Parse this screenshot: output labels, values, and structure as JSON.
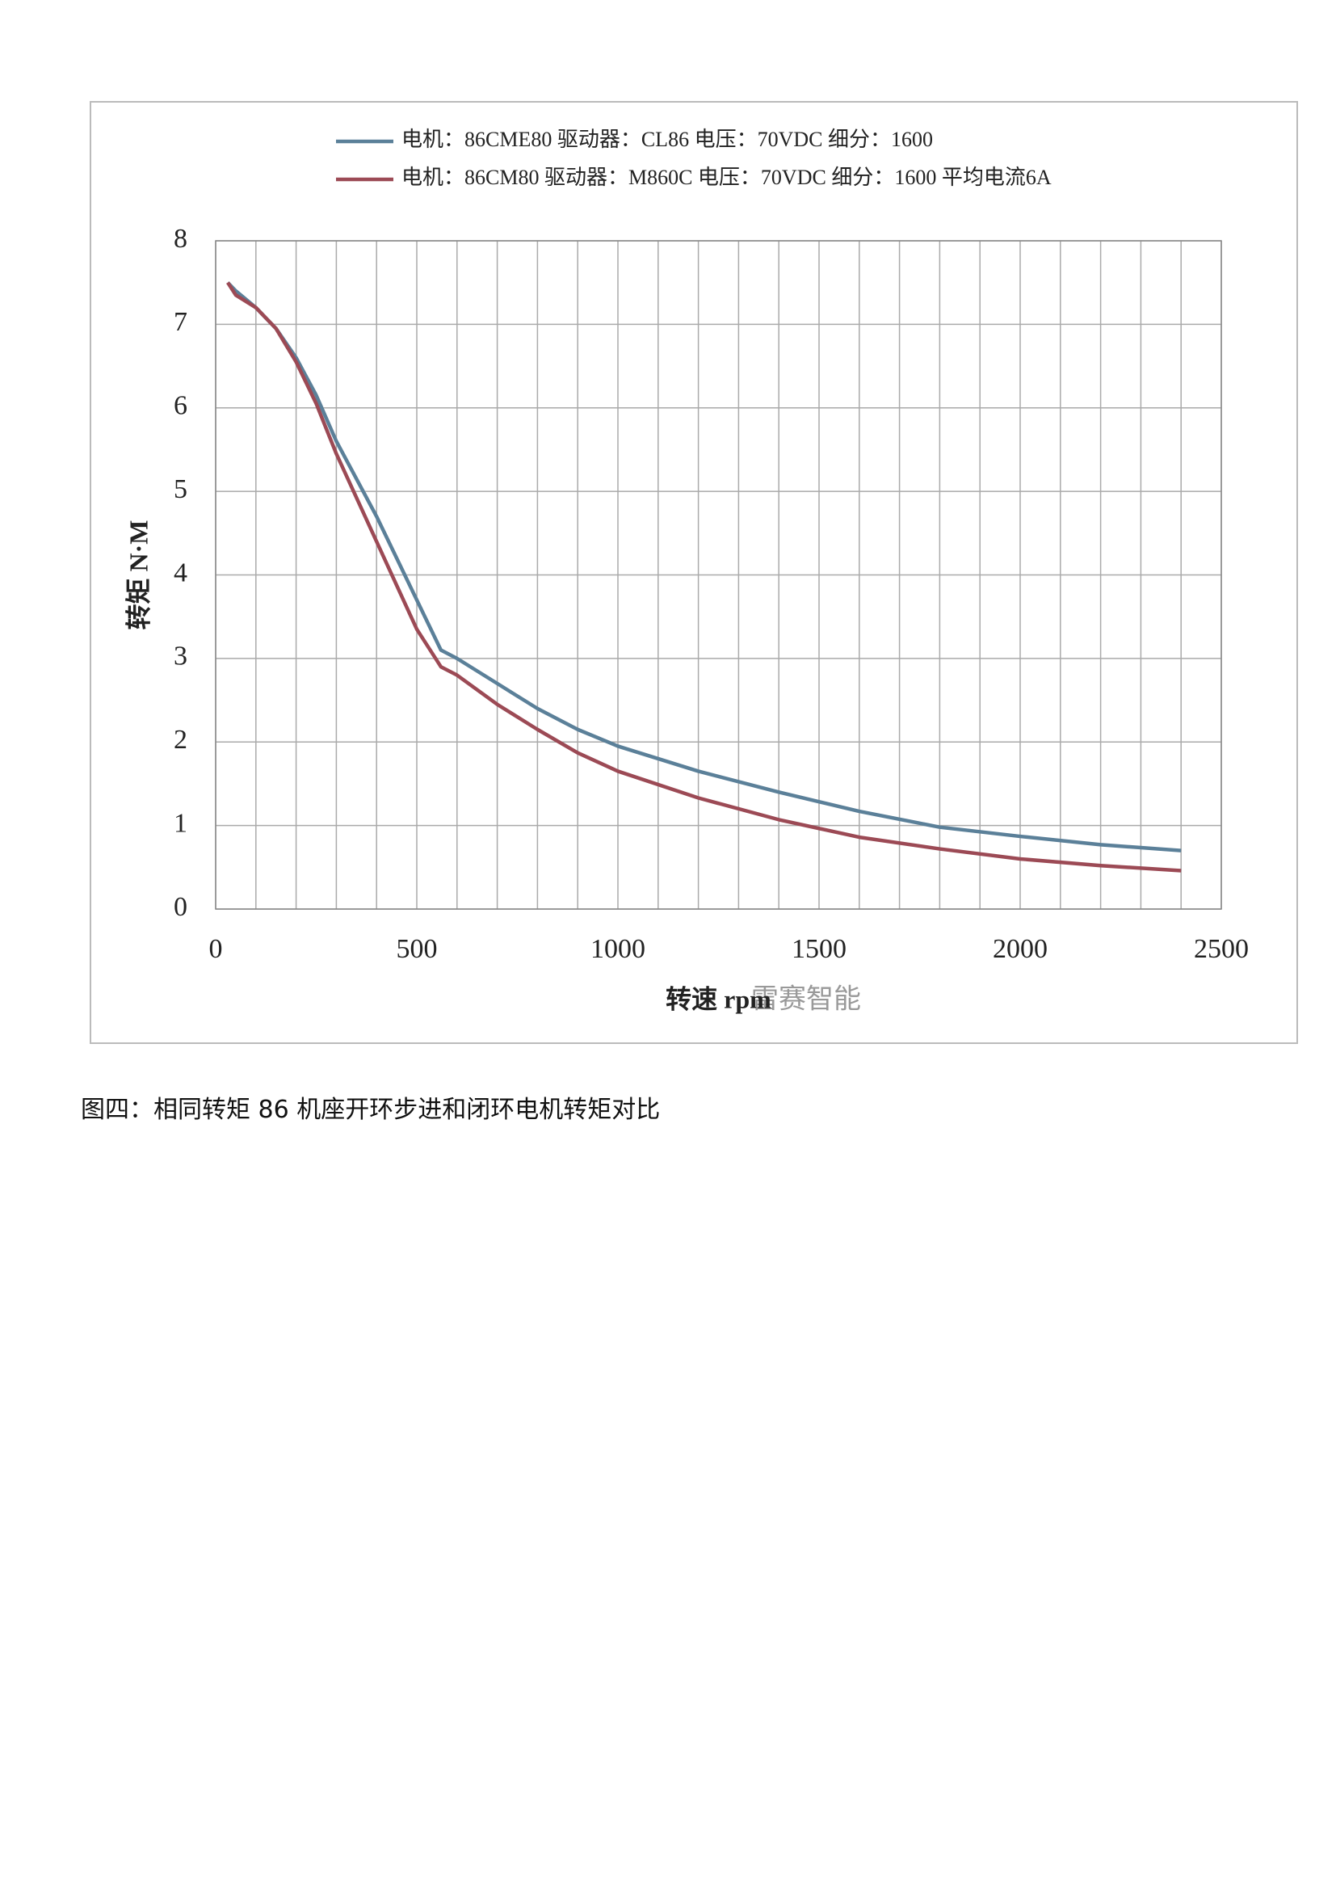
{
  "chart_data": {
    "type": "line",
    "legend": "top",
    "x_label": "转速 rpm",
    "y_label": "转矩 N·M",
    "annotation": "雷赛智能",
    "xlim": [
      0,
      2500
    ],
    "xticks": [
      0,
      500,
      1000,
      1500,
      2000,
      2500
    ],
    "xgrid": [
      0,
      100,
      200,
      300,
      400,
      500,
      600,
      700,
      800,
      900,
      1000,
      1100,
      1200,
      1300,
      1400,
      1500,
      1600,
      1700,
      1800,
      1900,
      2000,
      2100,
      2200,
      2300,
      2400,
      2500
    ],
    "ylim": [
      0,
      8
    ],
    "yticks": [
      0,
      1,
      2,
      3,
      4,
      5,
      6,
      7,
      8
    ],
    "grid": true,
    "x": [
      30,
      50,
      100,
      150,
      200,
      250,
      300,
      400,
      500,
      560,
      600,
      700,
      800,
      900,
      1000,
      1200,
      1400,
      1600,
      1800,
      2000,
      2200,
      2400
    ],
    "series": [
      {
        "name": "电机：86CME80 驱动器：CL86 电压：70VDC 细分：1600",
        "color": "#5b8099",
        "values": [
          7.5,
          7.4,
          7.2,
          6.95,
          6.6,
          6.15,
          5.6,
          4.7,
          3.7,
          3.1,
          3.0,
          2.7,
          2.4,
          2.15,
          1.95,
          1.65,
          1.4,
          1.17,
          0.98,
          0.87,
          0.77,
          0.7
        ]
      },
      {
        "name": "电机：86CM80 驱动器：M860C 电压：70VDC 细分：1600 平均电流6A",
        "color": "#9c4a55",
        "values": [
          7.5,
          7.35,
          7.2,
          6.95,
          6.55,
          6.05,
          5.45,
          4.4,
          3.35,
          2.9,
          2.8,
          2.45,
          2.15,
          1.87,
          1.65,
          1.33,
          1.07,
          0.86,
          0.72,
          0.6,
          0.52,
          0.46
        ]
      }
    ]
  },
  "caption": "图四：相同转矩 86 机座开环步进和闭环电机转矩对比"
}
